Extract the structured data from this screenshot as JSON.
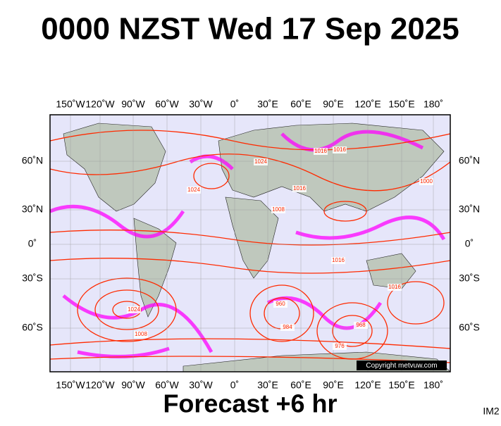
{
  "header": {
    "title": "0000 NZST Wed 17 Sep 2025"
  },
  "map": {
    "longitude_labels": [
      "150˚W",
      "120˚W",
      "90˚W",
      "60˚W",
      "30˚W",
      "0˚",
      "30˚E",
      "60˚E",
      "90˚E",
      "120˚E",
      "150˚E",
      "180˚"
    ],
    "latitude_labels": [
      "60˚N",
      "30˚N",
      "0˚",
      "30˚S",
      "60˚S"
    ],
    "isobar_labels": [
      "1016",
      "1024",
      "1016",
      "1008",
      "1016",
      "1000",
      "1024",
      "1016",
      "960",
      "984",
      "976",
      "968",
      "1024",
      "1008",
      "1016"
    ],
    "copyright": "Copyright metvuw.com"
  },
  "footer": {
    "forecast": "Forecast +6 hr",
    "image_id": "IM2"
  }
}
